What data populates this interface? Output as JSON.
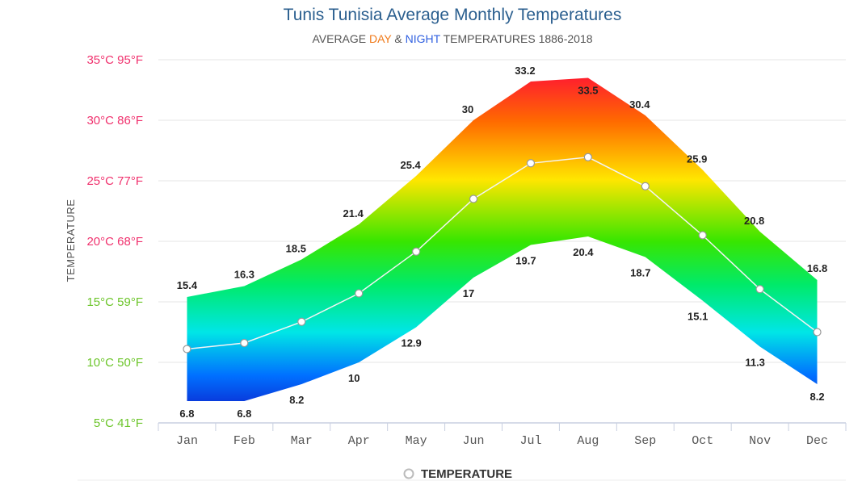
{
  "chart_data": {
    "type": "area",
    "title": "Tunis Tunisia Average Monthly Temperatures",
    "subtitle": {
      "prefix": "AVERAGE ",
      "day": "DAY",
      "amp": " & ",
      "night": "NIGHT",
      "suffix": " TEMPERATURES 1886-2018"
    },
    "ylabel": "TEMPERATURE",
    "ylim": [
      5,
      35
    ],
    "y_ticks": [
      {
        "value": 35,
        "label": "35°C 95°F",
        "color": "#f0326e"
      },
      {
        "value": 30,
        "label": "30°C 86°F",
        "color": "#f0326e"
      },
      {
        "value": 25,
        "label": "25°C 77°F",
        "color": "#f0326e"
      },
      {
        "value": 20,
        "label": "20°C 68°F",
        "color": "#f0326e"
      },
      {
        "value": 15,
        "label": "15°C 59°F",
        "color": "#6cc52a"
      },
      {
        "value": 10,
        "label": "10°C 50°F",
        "color": "#6cc52a"
      },
      {
        "value": 5,
        "label": "5°C 41°F",
        "color": "#6cc52a"
      }
    ],
    "categories": [
      "Jan",
      "Feb",
      "Mar",
      "Apr",
      "May",
      "Jun",
      "Jul",
      "Aug",
      "Sep",
      "Oct",
      "Nov",
      "Dec"
    ],
    "series": [
      {
        "name": "Day",
        "values": [
          15.4,
          16.3,
          18.5,
          21.4,
          25.4,
          30,
          33.2,
          33.5,
          30.4,
          25.9,
          20.8,
          16.8
        ]
      },
      {
        "name": "Night",
        "values": [
          6.8,
          6.8,
          8.2,
          10,
          12.9,
          17,
          19.7,
          20.4,
          18.7,
          15.1,
          11.3,
          8.2
        ]
      },
      {
        "name": "TEMPERATURE",
        "values": [
          11.1,
          11.6,
          13.35,
          15.7,
          19.15,
          23.5,
          26.45,
          26.95,
          24.55,
          20.5,
          16.05,
          12.5
        ]
      }
    ],
    "legend": {
      "label": "TEMPERATURE",
      "position": "bottom-center"
    },
    "colors": {
      "day": "#f07a1a",
      "night": "#2f5fe0",
      "title": "#2b5f8f",
      "grid": "#e6e6e6",
      "line": "#ffffff"
    }
  }
}
